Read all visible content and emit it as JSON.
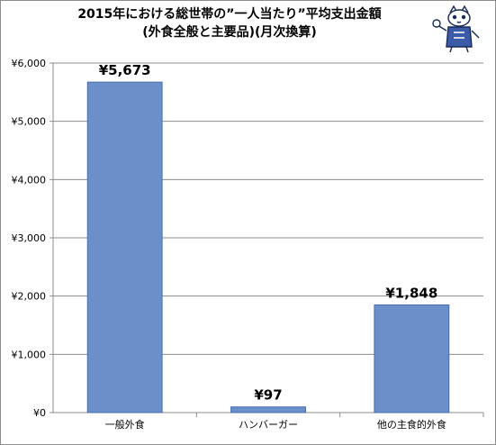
{
  "chart_data": {
    "type": "bar",
    "title_lines": [
      "2015年における総世帯の”一人当たり”平均支出金額",
      "(外食全般と主要品)(月次換算)"
    ],
    "categories": [
      "一般外食",
      "ハンバーガー",
      "他の主食的外食"
    ],
    "values": [
      5673,
      97,
      1848
    ],
    "data_labels": [
      "¥5,673",
      "¥97",
      "¥1,848"
    ],
    "yticks": [
      "¥0",
      "¥1,000",
      "¥2,000",
      "¥3,000",
      "¥4,000",
      "¥5,000",
      "¥6,000"
    ],
    "ylim": [
      0,
      6000
    ],
    "ytick_step": 1000,
    "grid": true,
    "legend": "none",
    "bar_color": "#6a8fc9",
    "bar_edge_color": "#4a6ea9"
  }
}
